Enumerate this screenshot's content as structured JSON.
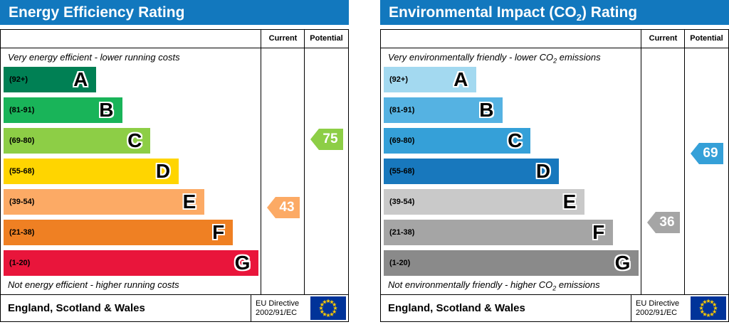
{
  "colors": {
    "header_bg": "#1278be",
    "header_text": "#ffffff",
    "eu_flag_bg": "#003399",
    "eu_flag_star": "#ffcc00"
  },
  "chart_data": [
    {
      "type": "bar",
      "title": "Energy Efficiency Rating",
      "title_parts": [
        "Energy Efficiency Rating"
      ],
      "columns": [
        "Current",
        "Potential"
      ],
      "top_label_parts": [
        "Very energy efficient - lower running costs"
      ],
      "bottom_label_parts": [
        "Not energy efficient - higher running costs"
      ],
      "bands": [
        {
          "letter": "A",
          "range": "(92+)",
          "min": 92,
          "max": 100,
          "color": "#008054",
          "width_pct": 36
        },
        {
          "letter": "B",
          "range": "(81-91)",
          "min": 81,
          "max": 91,
          "color": "#19b459",
          "width_pct": 46
        },
        {
          "letter": "C",
          "range": "(69-80)",
          "min": 69,
          "max": 80,
          "color": "#8dce46",
          "width_pct": 57
        },
        {
          "letter": "D",
          "range": "(55-68)",
          "min": 55,
          "max": 68,
          "color": "#ffd500",
          "width_pct": 68
        },
        {
          "letter": "E",
          "range": "(39-54)",
          "min": 39,
          "max": 54,
          "color": "#fcaa65",
          "width_pct": 78
        },
        {
          "letter": "F",
          "range": "(21-38)",
          "min": 21,
          "max": 38,
          "color": "#ef8023",
          "width_pct": 89
        },
        {
          "letter": "G",
          "range": "(1-20)",
          "min": 1,
          "max": 20,
          "color": "#e9153b",
          "width_pct": 99
        }
      ],
      "current": {
        "value": 43,
        "band": "E",
        "band_index": 4
      },
      "potential": {
        "value": 75,
        "band": "C",
        "band_index": 2
      },
      "footer_region": "England, Scotland & Wales",
      "directive": [
        "EU Directive",
        "2002/91/EC"
      ]
    },
    {
      "type": "bar",
      "title": "Environmental Impact (CO2) Rating",
      "title_parts": [
        "Environmental Impact (CO",
        "2",
        ") Rating"
      ],
      "columns": [
        "Current",
        "Potential"
      ],
      "top_label_parts": [
        "Very environmentally friendly - lower CO",
        "2",
        " emissions"
      ],
      "bottom_label_parts": [
        "Not environmentally friendly - higher CO",
        "2",
        " emissions"
      ],
      "bands": [
        {
          "letter": "A",
          "range": "(92+)",
          "min": 92,
          "max": 100,
          "color": "#a3d9f0",
          "width_pct": 36
        },
        {
          "letter": "B",
          "range": "(81-91)",
          "min": 81,
          "max": 91,
          "color": "#55b2e2",
          "width_pct": 46
        },
        {
          "letter": "C",
          "range": "(69-80)",
          "min": 69,
          "max": 80,
          "color": "#35a0d8",
          "width_pct": 57
        },
        {
          "letter": "D",
          "range": "(55-68)",
          "min": 55,
          "max": 68,
          "color": "#1878bd",
          "width_pct": 68
        },
        {
          "letter": "E",
          "range": "(39-54)",
          "min": 39,
          "max": 54,
          "color": "#c9c9c9",
          "width_pct": 78
        },
        {
          "letter": "F",
          "range": "(21-38)",
          "min": 21,
          "max": 38,
          "color": "#a5a5a5",
          "width_pct": 89
        },
        {
          "letter": "G",
          "range": "(1-20)",
          "min": 1,
          "max": 20,
          "color": "#8a8a8a",
          "width_pct": 99
        }
      ],
      "current": {
        "value": 36,
        "band": "F",
        "band_index": 5
      },
      "potential": {
        "value": 69,
        "band": "C",
        "band_index": 2
      },
      "footer_region": "England, Scotland & Wales",
      "directive": [
        "EU Directive",
        "2002/91/EC"
      ]
    }
  ]
}
